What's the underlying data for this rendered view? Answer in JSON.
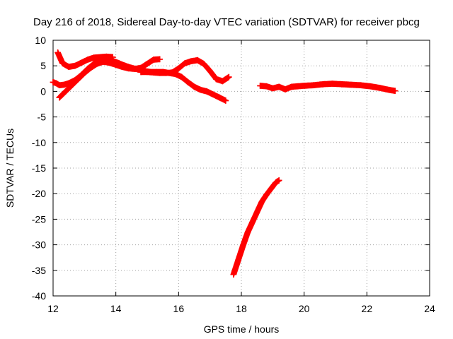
{
  "chart_data": {
    "type": "scatter",
    "title": "Day 216 of 2018, Sidereal Day-to-day VTEC variation (SDTVAR) for receiver pbcg",
    "xlabel": "GPS time / hours",
    "ylabel": "SDTVAR / TECUs",
    "xlim": [
      12,
      24
    ],
    "ylim": [
      -40,
      10
    ],
    "xticks": [
      "12",
      "14",
      "16",
      "18",
      "20",
      "22",
      "24"
    ],
    "yticks": [
      "10",
      "5",
      "0",
      "-5",
      "-10",
      "-15",
      "-20",
      "-25",
      "-30",
      "-35",
      "-40"
    ],
    "grid": true,
    "marker": "+",
    "series": [
      {
        "name": "arc-1",
        "color": "#ff0000",
        "x": [
          12.0,
          12.1,
          12.2,
          12.35,
          12.5,
          12.7,
          12.9,
          13.1,
          13.3,
          13.5,
          13.7,
          13.9,
          14.1,
          14.3,
          14.5,
          14.7,
          14.9,
          15.1,
          15.3,
          15.5,
          15.7,
          15.9,
          16.1,
          16.3,
          16.5,
          16.7,
          16.9,
          17.1,
          17.3,
          17.5
        ],
        "y": [
          1.8,
          1.6,
          1.2,
          1.3,
          1.6,
          2.2,
          3.2,
          4.4,
          5.4,
          6.0,
          6.2,
          6.0,
          5.5,
          5.0,
          4.6,
          4.3,
          4.0,
          3.8,
          3.8,
          3.8,
          3.6,
          3.4,
          2.8,
          1.8,
          0.9,
          0.3,
          0.0,
          -0.6,
          -1.2,
          -1.8
        ]
      },
      {
        "name": "arc-2",
        "color": "#ff0000",
        "x": [
          12.2,
          12.4,
          12.6,
          12.8,
          13.0,
          13.2,
          13.4,
          13.6,
          13.8,
          14.0,
          14.2,
          14.4,
          14.6,
          14.8,
          15.0,
          15.2,
          15.4
        ],
        "y": [
          -1.2,
          0.0,
          1.2,
          2.4,
          3.6,
          4.6,
          5.4,
          5.8,
          5.6,
          5.2,
          4.8,
          4.5,
          4.4,
          4.6,
          5.4,
          6.2,
          6.3
        ]
      },
      {
        "name": "arc-3",
        "color": "#ff0000",
        "x": [
          12.15,
          12.3,
          12.5,
          12.7,
          12.9,
          13.1,
          13.3,
          13.5,
          13.7,
          13.9
        ],
        "y": [
          7.6,
          5.5,
          4.8,
          5.0,
          5.6,
          6.2,
          6.6,
          6.7,
          6.8,
          6.7
        ]
      },
      {
        "name": "arc-4",
        "color": "#ff0000",
        "x": [
          14.8,
          15.0,
          15.2,
          15.4,
          15.6,
          15.8,
          16.0,
          16.2,
          16.4,
          16.6,
          16.8,
          17.0,
          17.2,
          17.4,
          17.6
        ],
        "y": [
          3.8,
          3.8,
          3.7,
          3.6,
          3.6,
          3.7,
          4.5,
          5.5,
          5.9,
          6.1,
          5.4,
          4.0,
          2.4,
          2.0,
          2.8
        ]
      },
      {
        "name": "arc-5",
        "color": "#ff0000",
        "x": [
          18.6,
          18.8,
          19.0,
          19.2,
          19.4,
          19.6,
          19.8,
          20.0,
          20.3,
          20.6,
          20.9,
          21.2,
          21.5,
          21.8,
          22.1,
          22.4,
          22.7,
          22.9
        ],
        "y": [
          1.1,
          1.0,
          0.6,
          0.9,
          0.4,
          0.9,
          1.0,
          1.1,
          1.2,
          1.4,
          1.5,
          1.4,
          1.3,
          1.2,
          1.0,
          0.7,
          0.3,
          0.1
        ]
      },
      {
        "name": "arc-6",
        "color": "#ff0000",
        "x": [
          17.75,
          17.9,
          18.05,
          18.2,
          18.35,
          18.5,
          18.65,
          18.8,
          18.95,
          19.1,
          19.2
        ],
        "y": [
          -35.8,
          -33.0,
          -30.2,
          -27.6,
          -25.6,
          -23.6,
          -21.6,
          -20.2,
          -19.0,
          -17.8,
          -17.4
        ]
      }
    ]
  }
}
